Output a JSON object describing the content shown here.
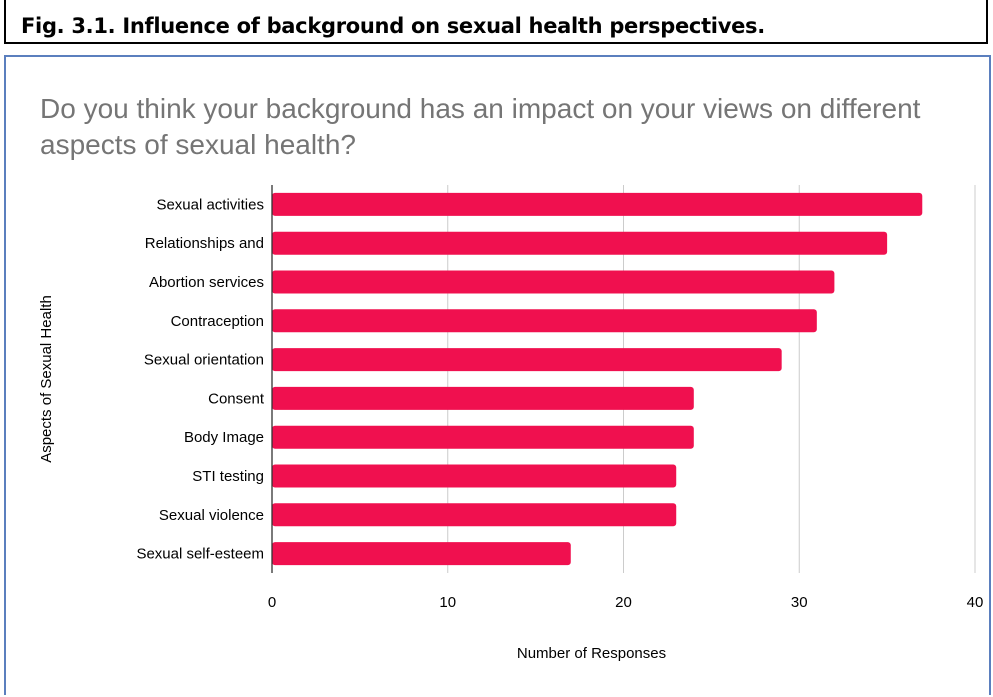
{
  "figure": {
    "caption": "Fig. 3.1. Influence of background on sexual health perspectives."
  },
  "chart_data": {
    "type": "bar",
    "orientation": "horizontal",
    "title": "Do you think your background has an impact on your views on different aspects of sexual health?",
    "xlabel": "Number of Responses",
    "ylabel": "Aspects of Sexual Health",
    "categories": [
      "Sexual activities",
      "Relationships and",
      "Abortion services",
      "Contraception",
      "Sexual orientation",
      "Consent",
      "Body Image",
      "STI testing",
      "Sexual violence",
      "Sexual self-esteem"
    ],
    "values": [
      37,
      35,
      32,
      31,
      29,
      24,
      24,
      23,
      23,
      17
    ],
    "xlim": [
      0,
      40
    ],
    "xticks": [
      0,
      10,
      20,
      30,
      40
    ],
    "grid": true,
    "legend": "none",
    "bar_color": "#f0104f",
    "grid_color": "#cccccc",
    "title_color": "#757575"
  }
}
